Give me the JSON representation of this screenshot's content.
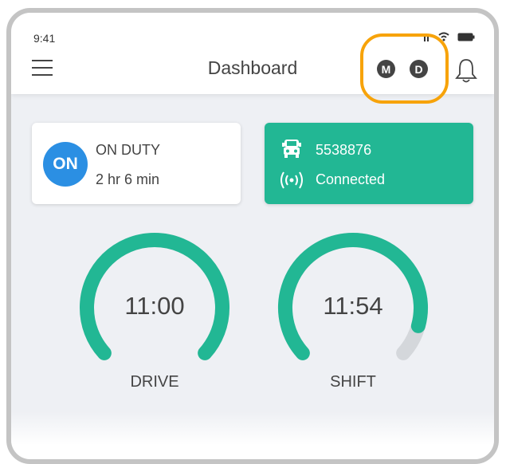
{
  "status_bar": {
    "time": "9:41",
    "icons": [
      "signal-icon",
      "wifi-icon",
      "battery-icon"
    ]
  },
  "header": {
    "title": "Dashboard",
    "mode_badges": [
      "M",
      "D"
    ],
    "highlight_color": "#f7a30a"
  },
  "duty_card": {
    "badge": "ON",
    "status": "ON DUTY",
    "duration": "2 hr 6 min",
    "badge_color": "#2b8fe3"
  },
  "vehicle_card": {
    "vehicle_id": "5538876",
    "connection": "Connected",
    "color": "#22b794"
  },
  "gauges": [
    {
      "label": "DRIVE",
      "value": "11:00",
      "progress": 1.0,
      "color": "#22b794"
    },
    {
      "label": "SHIFT",
      "value": "11:54",
      "progress": 0.9,
      "color": "#22b794"
    }
  ],
  "track_color": "#d4d7db"
}
